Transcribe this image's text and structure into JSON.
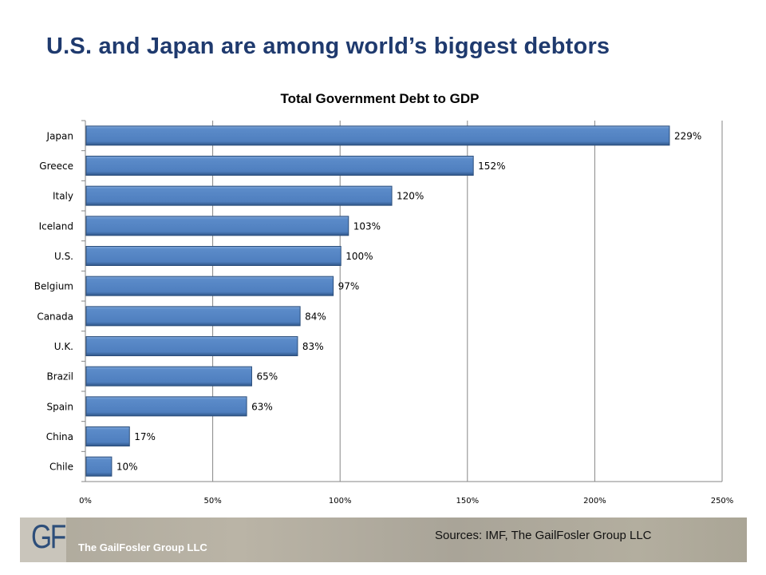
{
  "slide_title": "U.S. and Japan are among world’s biggest debtors",
  "footer": {
    "logo_text": "GF",
    "company": "The GailFosler Group LLC",
    "sources": "Sources: IMF, The GailFosler Group LLC"
  },
  "chart_data": {
    "type": "bar",
    "orientation": "horizontal",
    "title": "Total Government Debt to GDP",
    "categories": [
      "Japan",
      "Greece",
      "Italy",
      "Iceland",
      "U.S.",
      "Belgium",
      "Canada",
      "U.K.",
      "Brazil",
      "Spain",
      "China",
      "Chile"
    ],
    "values": [
      229,
      152,
      120,
      103,
      100,
      97,
      84,
      83,
      65,
      63,
      17,
      10
    ],
    "data_labels": [
      "229%",
      "152%",
      "120%",
      "103%",
      "100%",
      "97%",
      "84%",
      "83%",
      "65%",
      "63%",
      "17%",
      "10%"
    ],
    "xlim": [
      0,
      250
    ],
    "xticks": [
      0,
      50,
      100,
      150,
      200,
      250
    ],
    "xtick_labels": [
      "0%",
      "50%",
      "100%",
      "150%",
      "200%",
      "250%"
    ],
    "grid": "vertical",
    "bar_color": "#4f81bd"
  }
}
